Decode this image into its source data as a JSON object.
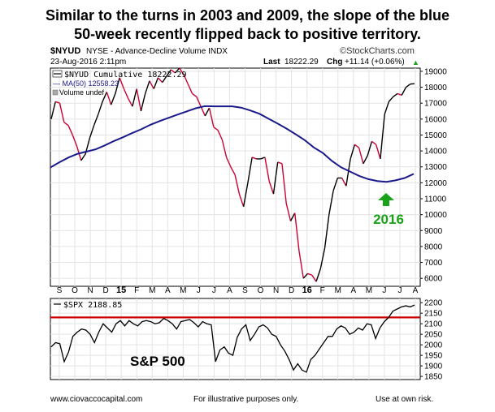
{
  "headline": {
    "line1": "Similar to the turns in 2003 and 2009, the slope of the blue",
    "line2": "50-week recently flipped back to positive territory."
  },
  "header": {
    "symbol": "$NYUD",
    "exchange_desc": "NYSE - Advance-Decline Volume INDX",
    "brand": "©StockCharts.com",
    "date": "23-Aug-2016 2:11pm",
    "last_label": "Last",
    "last_value": "18222.29",
    "chg_label": "Chg",
    "chg_value": "+11.14 (+0.06%)"
  },
  "colors": {
    "up": "#000000",
    "down": "#cc0033",
    "ma": "#1a1a8c",
    "arrow": "#1aa31a",
    "annotation": "#1aa31a",
    "resistance": "#cc0000"
  },
  "footer": {
    "site": "www.ciovaccocapital.com",
    "note": "For illustrative purposes only.",
    "risk": "Use at own risk."
  },
  "chart_data": [
    {
      "type": "line",
      "legend": [
        "$NYUD Cumulative 18222.29",
        "MA(50) 12558.23",
        "Volume undef"
      ],
      "annotation": "2016",
      "yticks": [
        6000,
        7000,
        8000,
        9000,
        10000,
        11000,
        12000,
        13000,
        14000,
        15000,
        16000,
        17000,
        18000,
        19000
      ],
      "ylim": [
        5500,
        19200
      ],
      "xticks": [
        "S",
        "O",
        "N",
        "D",
        "15",
        "F",
        "M",
        "A",
        "M",
        "J",
        "J",
        "A",
        "S",
        "O",
        "N",
        "D",
        "16",
        "F",
        "M",
        "A",
        "M",
        "J",
        "J",
        "A"
      ],
      "series": [
        {
          "name": "$NYUD Cumulative",
          "values": [
            16000,
            17100,
            17000,
            15800,
            15600,
            15000,
            14300,
            13400,
            13800,
            14800,
            15600,
            16300,
            17100,
            17700,
            16900,
            17600,
            18600,
            17900,
            17300,
            16800,
            17900,
            16500,
            17600,
            18400,
            17900,
            18600,
            18300,
            18700,
            19100,
            18900,
            19200,
            18800,
            18200,
            17600,
            17400,
            16800,
            16200,
            16700,
            15500,
            15300,
            14700,
            13600,
            13000,
            12500,
            11300,
            10500,
            12000,
            13600,
            13500,
            13500,
            13600,
            12100,
            11300,
            13300,
            13200,
            10700,
            9600,
            10100,
            7700,
            6000,
            6300,
            6200,
            5800,
            6600,
            7900,
            10000,
            11500,
            12300,
            12300,
            11800,
            13500,
            14400,
            14200,
            13200,
            13700,
            14600,
            14400,
            13500,
            16300,
            17100,
            17400,
            17600,
            17500,
            18000,
            18200,
            18222
          ]
        },
        {
          "name": "MA(50)",
          "values": [
            12960,
            13290,
            13590,
            13820,
            13960,
            14100,
            14350,
            14620,
            14860,
            15120,
            15360,
            15640,
            15870,
            16080,
            16280,
            16480,
            16680,
            16810,
            16800,
            16800,
            16800,
            16720,
            16540,
            16340,
            16030,
            15720,
            15400,
            15050,
            14680,
            14220,
            13870,
            13370,
            12970,
            12700,
            12430,
            12230,
            12110,
            12060,
            12150,
            12300,
            12558
          ]
        }
      ]
    },
    {
      "type": "line",
      "legend": [
        "$SPX 2188.85"
      ],
      "annotation": "S&P 500",
      "yticks": [
        1850,
        1900,
        1950,
        2000,
        2050,
        2100,
        2150,
        2200
      ],
      "ylim": [
        1835,
        2220
      ],
      "resistance": 2130,
      "xticks": [
        "S",
        "O",
        "N",
        "D",
        "15",
        "F",
        "M",
        "A",
        "M",
        "J",
        "J",
        "A",
        "S",
        "O",
        "N",
        "D",
        "16",
        "F",
        "M",
        "A",
        "M",
        "J",
        "J",
        "A"
      ],
      "series": [
        {
          "name": "$SPX",
          "values": [
            1990,
            2010,
            2005,
            1920,
            1965,
            2040,
            2060,
            2075,
            2070,
            2050,
            2010,
            2060,
            2100,
            2080,
            2060,
            2100,
            2115,
            2090,
            2115,
            2100,
            2090,
            2110,
            2115,
            2110,
            2100,
            2105,
            2125,
            2115,
            2100,
            2075,
            2110,
            2115,
            2120,
            2105,
            2085,
            2110,
            2100,
            2095,
            1920,
            1975,
            1990,
            1960,
            1950,
            2035,
            2075,
            2095,
            2020,
            2050,
            2085,
            2095,
            2080,
            2050,
            2040,
            2000,
            1970,
            1930,
            1880,
            1910,
            1880,
            1870,
            1930,
            1950,
            1980,
            2010,
            2040,
            2040,
            2075,
            2090,
            2080,
            2050,
            2060,
            2080,
            2070,
            2100,
            2095,
            2030,
            2080,
            2110,
            2130,
            2160,
            2170,
            2180,
            2185,
            2180,
            2189
          ]
        }
      ]
    }
  ]
}
